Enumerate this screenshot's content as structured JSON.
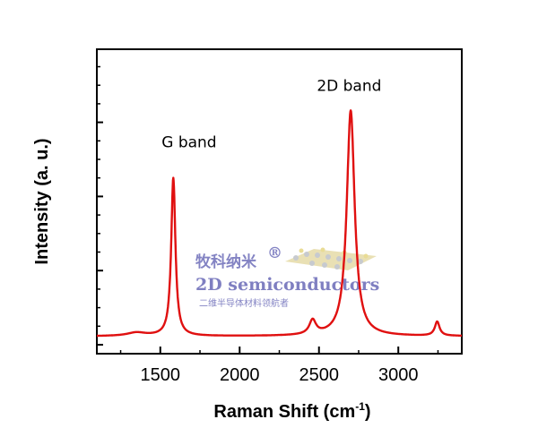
{
  "chart_data": {
    "type": "line",
    "xlabel": "Raman Shift (cm",
    "xlabel_sup": "-1",
    "xlabel_end": ")",
    "ylabel": "Intensity (a. u.)",
    "xlim": [
      1100,
      3400
    ],
    "ylim": [
      0,
      1
    ],
    "x_ticks": [
      1500,
      2000,
      2500,
      3000
    ],
    "grid": false,
    "series_color": "#e01010",
    "annotations": [
      {
        "text": "G band",
        "x": 1580,
        "y": 0.7
      },
      {
        "text": "2D band",
        "x": 2690,
        "y": 0.9
      }
    ],
    "peaks": [
      {
        "center": 1350,
        "height": 0.012,
        "width": 70
      },
      {
        "center": 1582,
        "height": 0.56,
        "width": 16
      },
      {
        "center": 2460,
        "height": 0.05,
        "width": 25
      },
      {
        "center": 2700,
        "height": 0.8,
        "width": 30
      },
      {
        "center": 3245,
        "height": 0.05,
        "width": 18
      }
    ],
    "baseline": 0.03
  },
  "watermark": {
    "line1": "牧科纳米",
    "mark": "®",
    "line2": "2D semiconductors",
    "line3": "二维半导体材料领航者"
  }
}
